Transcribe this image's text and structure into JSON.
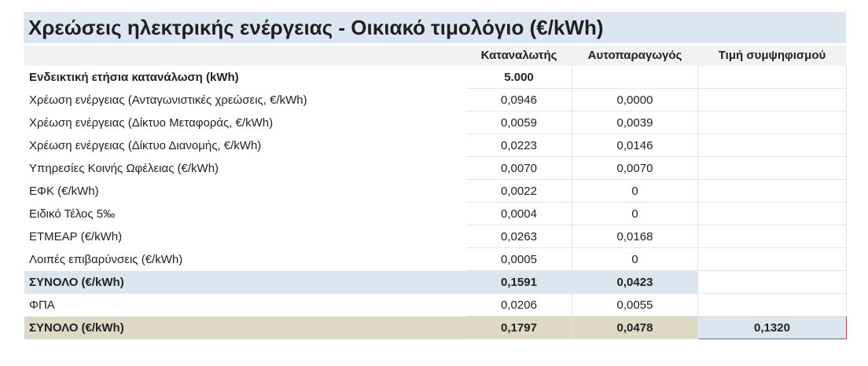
{
  "title": "Χρεώσεις ηλεκτρικής ενέργειας - Οικιακό τιμολόγιο (€/kWh)",
  "table": {
    "headers": [
      "Καταναλωτής",
      "Αυτοπαραγωγός",
      "Τιμή συμψηφισμού"
    ],
    "rows": [
      [
        "Ενδεικτική ετήσια κατανάλωση (kWh)",
        "5.000"
      ],
      [
        "Χρέωση ενέργειας (Ανταγωνιστικές χρεώσεις, €/kWh)",
        "0,0946",
        "0,0000"
      ],
      [
        "Χρέωση ενέργειας (Δίκτυο Μεταφοράς, €/kWh)",
        "0,0059",
        "0,0039"
      ],
      [
        "Χρέωση ενέργειας (Δίκτυο Διανομής, €/kWh)",
        "0,0223",
        "0,0146"
      ],
      [
        "Υπηρεσίες Κοινής Ωφέλειας (€/kWh)",
        "0,0070",
        "0,0070"
      ],
      [
        "ΕΦΚ (€/kWh)",
        "0,0022",
        "0"
      ],
      [
        "Ειδικό Τέλος 5‰",
        "0,0004",
        "0"
      ],
      [
        "ΕΤΜΕΑΡ (€/kWh)",
        "0,0263",
        "0,0168"
      ],
      [
        "Λοιπές επιβαρύνσεις (€/kWh)",
        "0,0005",
        "0"
      ],
      [
        "ΣΥΝΟΛΟ (€/kWh)",
        "0,1591",
        "0,0423"
      ],
      [
        "ΦΠΑ",
        "0,0206",
        "0,0055"
      ],
      [
        "ΣΥΝΟΛΟ (€/kWh)",
        "0,1797",
        "0,0478",
        "0,1320"
      ]
    ]
  }
}
